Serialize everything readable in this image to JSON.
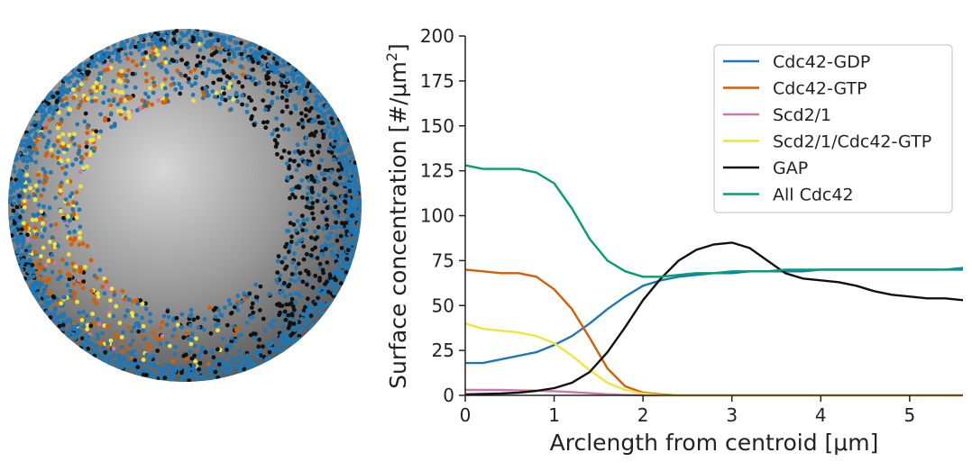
{
  "sphere": {
    "dot_colors": {
      "blue": "#1f77b4",
      "orange": "#d45f00",
      "pink": "#cc79a7",
      "yellow": "#f0e442",
      "black": "#111111"
    },
    "sphere_colors": {
      "light": "#d7d7d7",
      "mid": "#9a9a9a",
      "dark": "#5a5a5a"
    }
  },
  "chart_data": {
    "type": "line",
    "xlabel": "Arclength from centroid [μm]",
    "ylabel_base": "Surface concentration [#/μm",
    "ylabel_sup": "2",
    "ylabel_end": "]",
    "xlim": [
      0,
      5.6
    ],
    "ylim": [
      0,
      200
    ],
    "xticks": [
      0,
      1,
      2,
      3,
      4,
      5
    ],
    "yticks": [
      0,
      25,
      50,
      75,
      100,
      125,
      150,
      175,
      200
    ],
    "grid": false,
    "legend_position": "top-right",
    "x": [
      0,
      0.2,
      0.4,
      0.6,
      0.8,
      1.0,
      1.2,
      1.4,
      1.6,
      1.8,
      2.0,
      2.2,
      2.4,
      2.6,
      2.8,
      3.0,
      3.2,
      3.4,
      3.6,
      3.8,
      4.0,
      4.2,
      4.4,
      4.6,
      4.8,
      5.0,
      5.2,
      5.4,
      5.6
    ],
    "series": [
      {
        "name": "Cdc42-GDP",
        "color": "#1f77b4",
        "values": [
          18,
          18,
          20,
          22,
          24,
          28,
          33,
          40,
          48,
          55,
          61,
          64,
          66,
          67,
          68,
          68,
          69,
          69,
          69,
          69,
          70,
          70,
          70,
          70,
          70,
          70,
          70,
          70,
          70
        ]
      },
      {
        "name": "Cdc42-GTP",
        "color": "#d45f00",
        "values": [
          70,
          69,
          68,
          68,
          66,
          59,
          48,
          32,
          15,
          5,
          1.5,
          0.5,
          0,
          0,
          0,
          0,
          0,
          0,
          0,
          0,
          0,
          0,
          0,
          0,
          0,
          0,
          0,
          0,
          0
        ]
      },
      {
        "name": "Scd2/1",
        "color": "#cc79a7",
        "values": [
          3,
          3,
          3,
          2.8,
          2.6,
          2.3,
          1.8,
          1.2,
          0.6,
          0.2,
          0,
          0,
          0,
          0,
          0,
          0,
          0,
          0,
          0,
          0,
          0,
          0,
          0,
          0,
          0,
          0,
          0,
          0,
          0
        ]
      },
      {
        "name": "Scd2/1/Cdc42-GTP",
        "color": "#f0e442",
        "values": [
          40,
          37,
          36,
          35,
          33,
          29,
          22,
          14,
          7,
          3,
          1,
          0,
          0,
          0,
          0,
          0,
          0,
          0,
          0,
          0,
          0,
          0,
          0,
          0,
          0,
          0,
          0,
          0,
          0
        ]
      },
      {
        "name": "GAP",
        "color": "#111111",
        "values": [
          0.5,
          0.8,
          1,
          1.5,
          2.5,
          4,
          7,
          13,
          24,
          38,
          53,
          65,
          75,
          81,
          84,
          85,
          82,
          75,
          68,
          65,
          64,
          63,
          61,
          58,
          56,
          55,
          54,
          54,
          53
        ]
      },
      {
        "name": "All Cdc42",
        "color": "#009e73",
        "values": [
          128,
          126,
          126,
          126,
          124,
          118,
          104,
          87,
          75,
          69,
          66,
          66,
          67,
          68,
          68,
          69,
          69,
          69,
          70,
          70,
          70,
          70,
          70,
          70,
          70,
          70,
          70,
          70,
          71
        ]
      }
    ]
  }
}
